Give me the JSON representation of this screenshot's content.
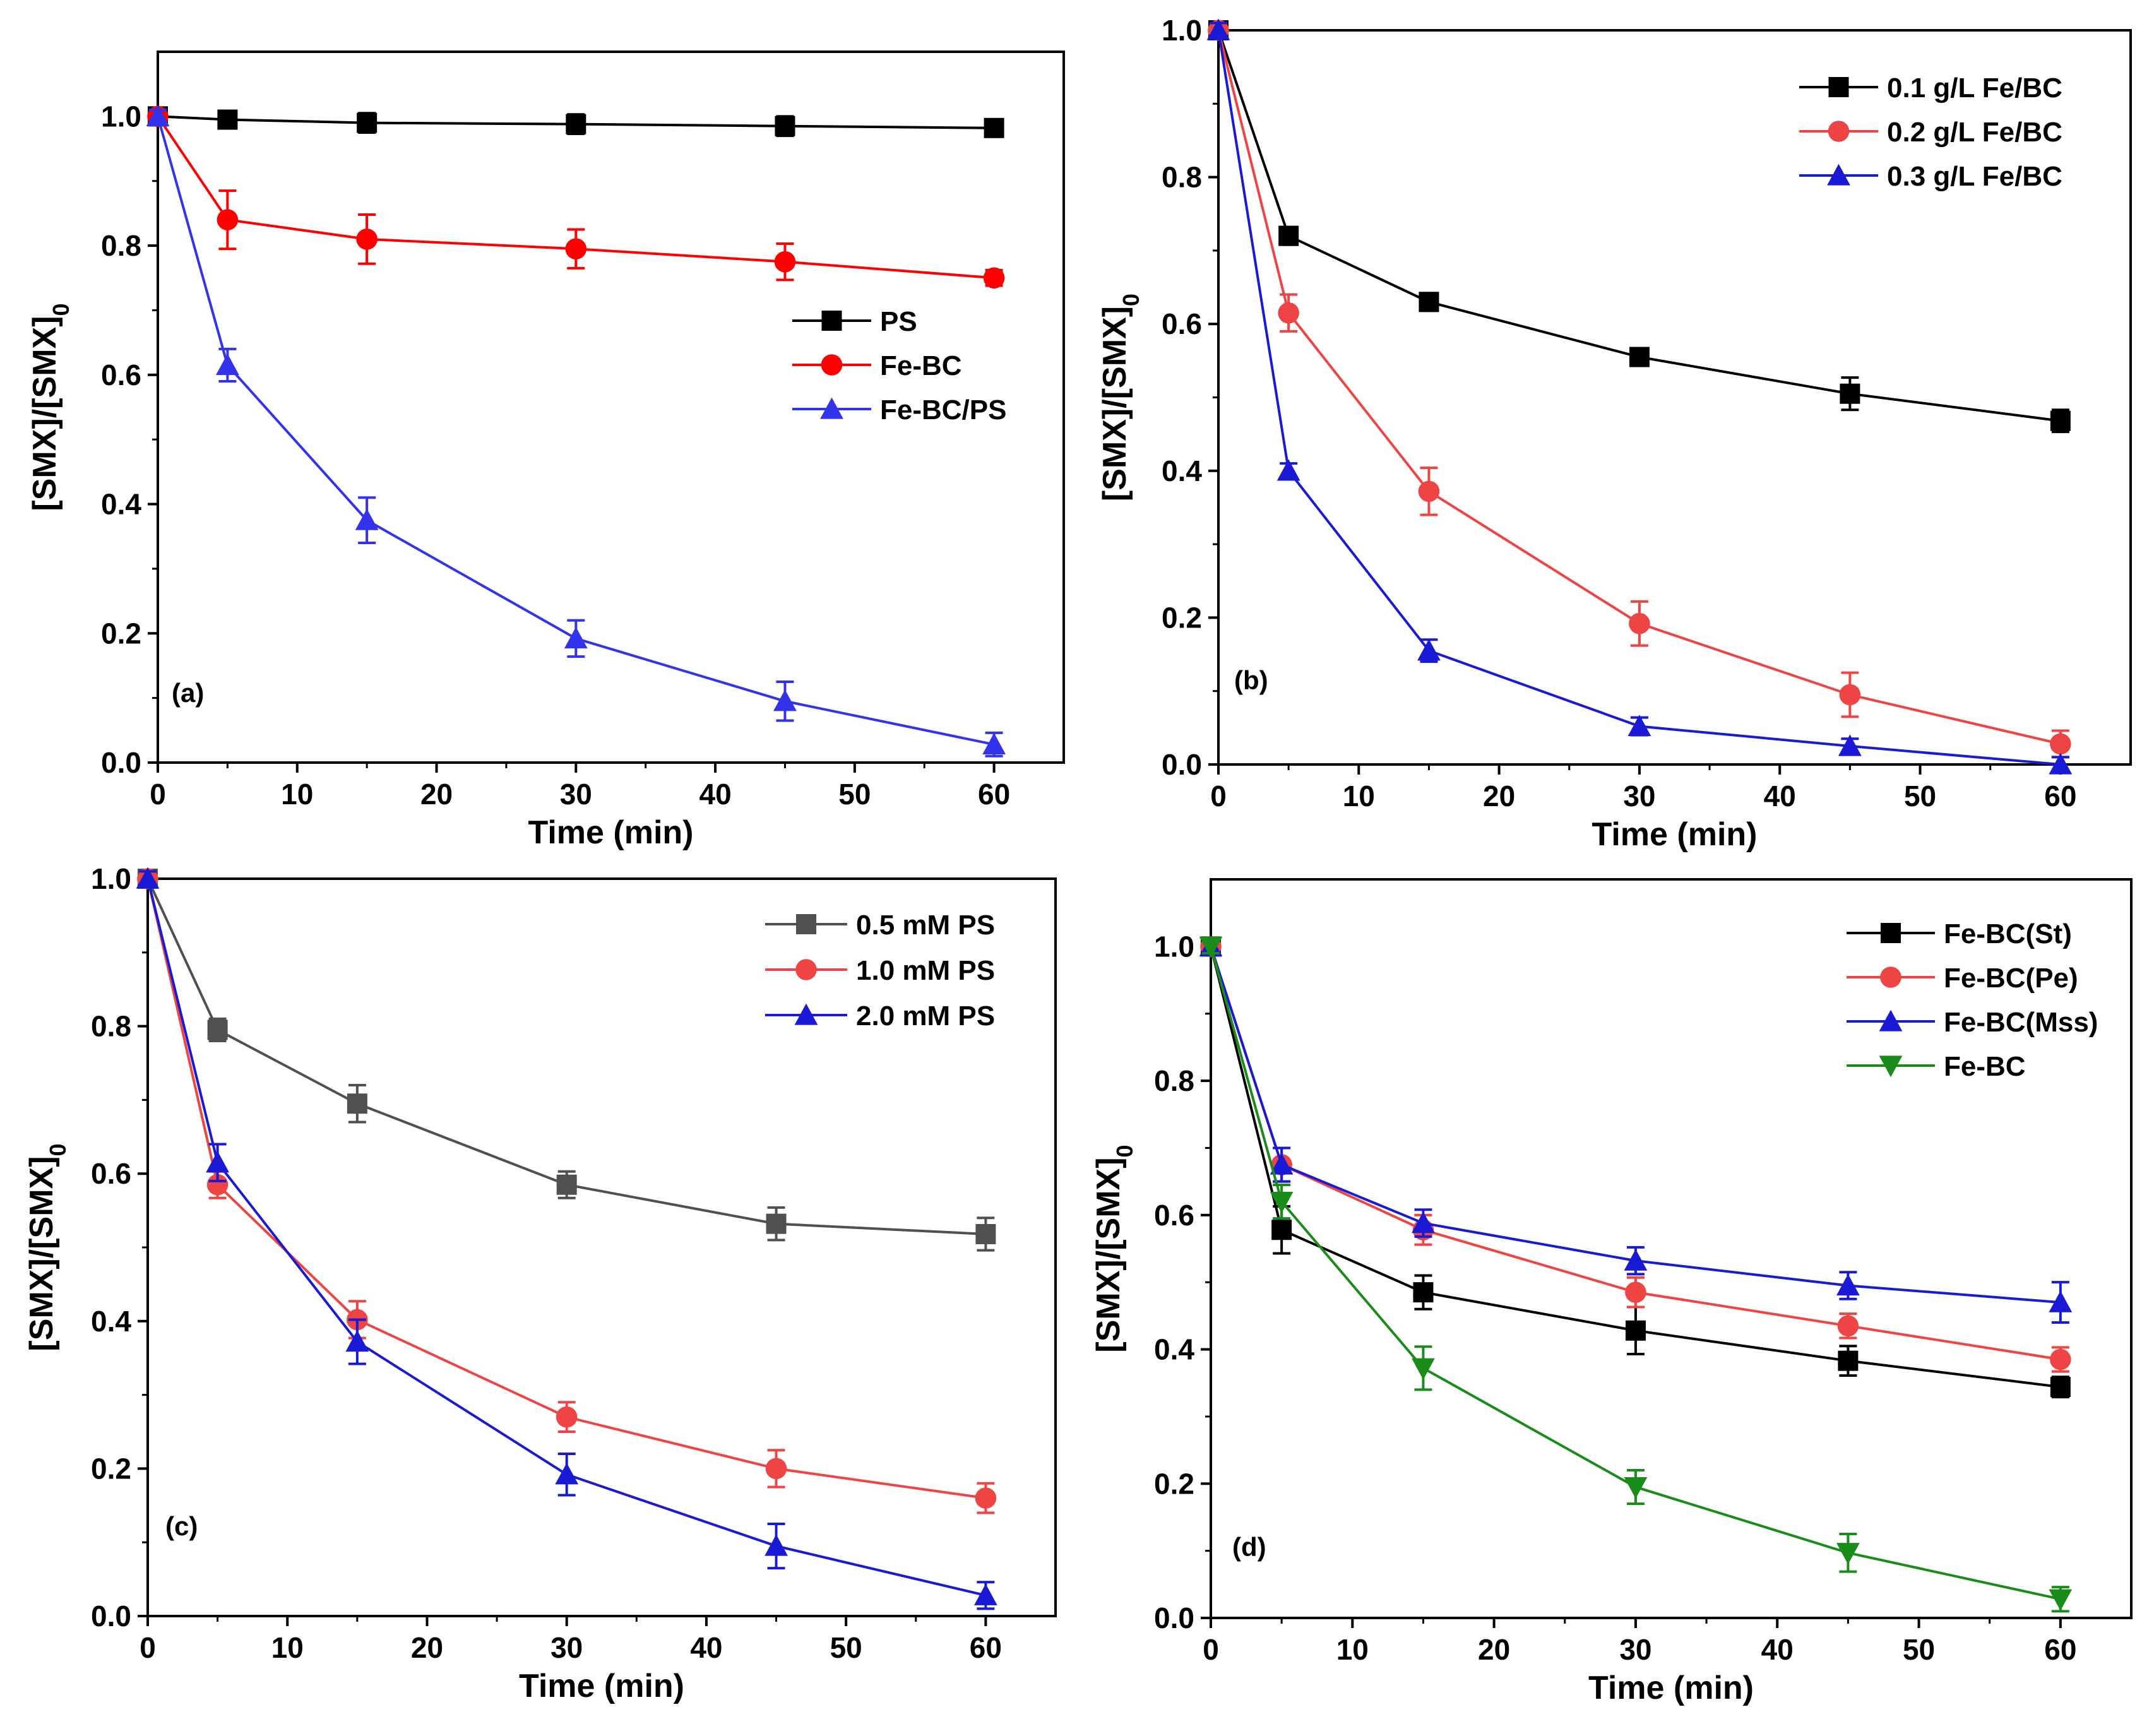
{
  "chart_data": [
    {
      "type": "line",
      "panel_label": "(a)",
      "xlabel": "Time (min)",
      "ylabel": "[SMX]/[SMX]",
      "ylabel_sub": "0",
      "xlim": [
        0,
        65
      ],
      "ylim": [
        0,
        1.1
      ],
      "xticks": [
        0,
        10,
        20,
        30,
        40,
        50,
        60
      ],
      "yticks": [
        0.0,
        0.2,
        0.4,
        0.6,
        0.8,
        1.0
      ],
      "legend_position": "center-right",
      "x": [
        0,
        5,
        15,
        30,
        45,
        60
      ],
      "series": [
        {
          "name": "PS",
          "color": "#000000",
          "marker": "square",
          "values": [
            1.0,
            0.995,
            0.99,
            0.988,
            0.985,
            0.982
          ],
          "errors": [
            0.01,
            0.012,
            0.015,
            0.015,
            0.015,
            0.012
          ]
        },
        {
          "name": "Fe-BC",
          "color": "#ff0000",
          "marker": "circle",
          "values": [
            1.0,
            0.84,
            0.81,
            0.795,
            0.775,
            0.75
          ],
          "errors": [
            0.01,
            0.045,
            0.038,
            0.03,
            0.028,
            0.012
          ]
        },
        {
          "name": "Fe-BC/PS",
          "color": "#3333ee",
          "marker": "triangle",
          "values": [
            1.0,
            0.615,
            0.375,
            0.192,
            0.095,
            0.028
          ],
          "errors": [
            0.01,
            0.025,
            0.035,
            0.028,
            0.03,
            0.018
          ]
        }
      ]
    },
    {
      "type": "line",
      "panel_label": "(b)",
      "xlabel": "Time (min)",
      "ylabel": "[SMX]/[SMX]",
      "ylabel_sub": "0",
      "xlim": [
        0,
        65
      ],
      "ylim": [
        0,
        1.0
      ],
      "xticks": [
        0,
        10,
        20,
        30,
        40,
        50,
        60
      ],
      "yticks": [
        0.0,
        0.2,
        0.4,
        0.6,
        0.8,
        1.0
      ],
      "legend_position": "top-right",
      "x": [
        0,
        5,
        15,
        30,
        45,
        60
      ],
      "series": [
        {
          "name": "0.1 g/L Fe/BC",
          "color": "#000000",
          "marker": "square",
          "values": [
            1.0,
            0.72,
            0.63,
            0.555,
            0.505,
            0.468
          ],
          "errors": [
            0.01,
            0.012,
            0.012,
            0.012,
            0.022,
            0.015
          ]
        },
        {
          "name": "0.2 g/L Fe/BC",
          "color": "#ef4444",
          "marker": "circle",
          "values": [
            1.0,
            0.615,
            0.372,
            0.192,
            0.095,
            0.028
          ],
          "errors": [
            0.01,
            0.025,
            0.032,
            0.03,
            0.03,
            0.018
          ]
        },
        {
          "name": "0.3 g/L Fe/BC",
          "color": "#1a1ad6",
          "marker": "triangle",
          "values": [
            1.0,
            0.4,
            0.155,
            0.052,
            0.025,
            0.0
          ],
          "errors": [
            0.01,
            0.01,
            0.015,
            0.012,
            0.01,
            0.01
          ]
        }
      ]
    },
    {
      "type": "line",
      "panel_label": "(c)",
      "xlabel": "Time (min)",
      "ylabel": "[SMX]/[SMX]",
      "ylabel_sub": "0",
      "xlim": [
        0,
        65
      ],
      "ylim": [
        0,
        1.0
      ],
      "xticks": [
        0,
        10,
        20,
        30,
        40,
        50,
        60
      ],
      "yticks": [
        0.0,
        0.2,
        0.4,
        0.6,
        0.8,
        1.0
      ],
      "legend_position": "top-right",
      "x": [
        0,
        5,
        15,
        30,
        45,
        60
      ],
      "series": [
        {
          "name": "0.5 mM  PS",
          "color": "#505050",
          "marker": "square",
          "values": [
            1.0,
            0.795,
            0.695,
            0.585,
            0.532,
            0.518
          ],
          "errors": [
            0.01,
            0.015,
            0.025,
            0.018,
            0.022,
            0.022
          ]
        },
        {
          "name": "1.0 mM PS",
          "color": "#ef4444",
          "marker": "circle",
          "values": [
            1.0,
            0.585,
            0.402,
            0.27,
            0.2,
            0.16
          ],
          "errors": [
            0.01,
            0.018,
            0.025,
            0.02,
            0.025,
            0.02
          ]
        },
        {
          "name": "2.0 mM PS",
          "color": "#1a1ad6",
          "marker": "triangle",
          "values": [
            1.0,
            0.615,
            0.372,
            0.192,
            0.095,
            0.028
          ],
          "errors": [
            0.01,
            0.025,
            0.03,
            0.028,
            0.03,
            0.018
          ]
        }
      ]
    },
    {
      "type": "line",
      "panel_label": "(d)",
      "xlabel": "Time (min)",
      "ylabel": "[SMX]/[SMX]",
      "ylabel_sub": "0",
      "xlim": [
        0,
        65
      ],
      "ylim": [
        0,
        1.1
      ],
      "xticks": [
        0,
        10,
        20,
        30,
        40,
        50,
        60
      ],
      "yticks": [
        0.0,
        0.2,
        0.4,
        0.6,
        0.8,
        1.0
      ],
      "legend_position": "top-right",
      "x": [
        0,
        5,
        15,
        30,
        45,
        60
      ],
      "series": [
        {
          "name": "Fe-BC(St)",
          "color": "#000000",
          "marker": "square",
          "values": [
            1.0,
            0.578,
            0.485,
            0.428,
            0.383,
            0.344
          ],
          "errors": [
            0.01,
            0.035,
            0.025,
            0.035,
            0.022,
            0.015
          ]
        },
        {
          "name": "Fe-BC(Pe)",
          "color": "#ef4444",
          "marker": "circle",
          "values": [
            1.0,
            0.675,
            0.578,
            0.485,
            0.435,
            0.385
          ],
          "errors": [
            0.01,
            0.025,
            0.022,
            0.022,
            0.018,
            0.018
          ]
        },
        {
          "name": "Fe-BC(Mss)",
          "color": "#1a1ad6",
          "marker": "triangle",
          "values": [
            1.0,
            0.675,
            0.588,
            0.532,
            0.495,
            0.47
          ],
          "errors": [
            0.01,
            0.025,
            0.02,
            0.02,
            0.02,
            0.03
          ]
        },
        {
          "name": "Fe-BC",
          "color": "#1a8c1a",
          "marker": "triangle-down",
          "values": [
            1.0,
            0.62,
            0.372,
            0.195,
            0.097,
            0.028
          ],
          "errors": [
            0.01,
            0.025,
            0.032,
            0.025,
            0.028,
            0.018
          ]
        }
      ]
    }
  ]
}
